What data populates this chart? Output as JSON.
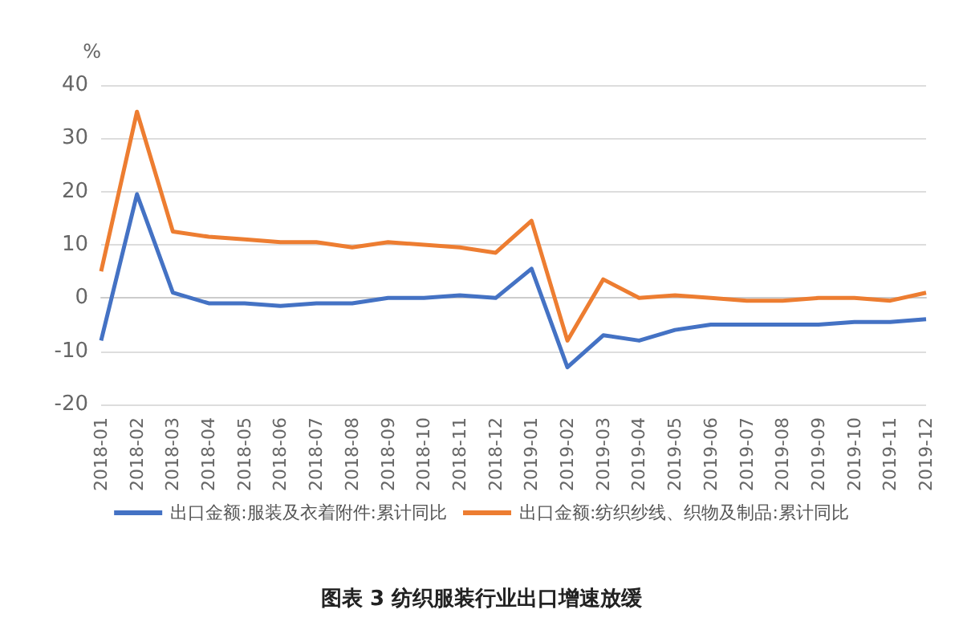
{
  "chart_data": {
    "type": "line",
    "ylabel": "%",
    "categories": [
      "2018-01",
      "2018-02",
      "2018-03",
      "2018-04",
      "2018-05",
      "2018-06",
      "2018-07",
      "2018-08",
      "2018-09",
      "2018-10",
      "2018-11",
      "2018-12",
      "2019-01",
      "2019-02",
      "2019-03",
      "2019-04",
      "2019-05",
      "2019-06",
      "2019-07",
      "2019-08",
      "2019-09",
      "2019-10",
      "2019-11",
      "2019-12"
    ],
    "series": [
      {
        "name": "出口金额:服装及衣着附件:累计同比",
        "color": "#4472c4",
        "values": [
          -8,
          19.5,
          1,
          -1,
          -1,
          -1.5,
          -1,
          -1,
          0,
          0,
          0.5,
          0,
          5.5,
          -13,
          -7,
          -8,
          -6,
          -5,
          -5,
          -5,
          -5,
          -4.5,
          -4.5,
          -4
        ]
      },
      {
        "name": "出口金额:纺织纱线、织物及制品:累计同比",
        "color": "#ed7d31",
        "values": [
          5,
          35,
          12.5,
          11.5,
          11,
          10.5,
          10.5,
          9.5,
          10.5,
          10,
          9.5,
          8.5,
          14.5,
          -8,
          3.5,
          0,
          0.5,
          0,
          -0.5,
          -0.5,
          0,
          0,
          -0.5,
          1
        ]
      }
    ],
    "ylim": [
      -20,
      40
    ],
    "yticks": [
      -20,
      -10,
      0,
      10,
      20,
      30,
      40
    ],
    "grid": "y",
    "legend": "bottom",
    "marker": "none",
    "line_style": "solid",
    "annotations": [
      "图表 3 纺织服装行业出口增速放缓"
    ]
  }
}
